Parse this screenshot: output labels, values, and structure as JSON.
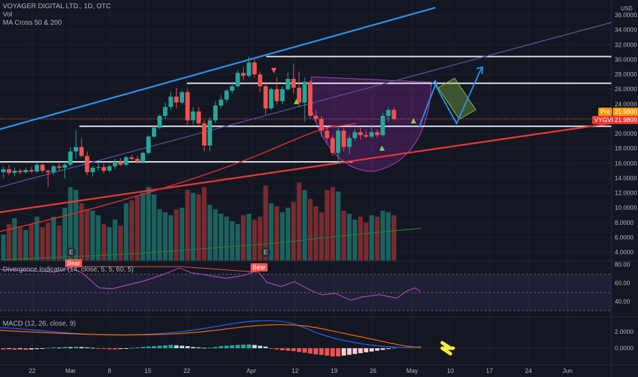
{
  "header": {
    "title": "VOYAGER DIGITAL LTD., 1D, OTC",
    "vol_label": "Vol",
    "ma_label": "MA Cross 50 & 200"
  },
  "price_axis": {
    "currency": "USD",
    "labels": [
      "36.0000",
      "34.0000",
      "32.0000",
      "30.0000",
      "28.0000",
      "26.0000",
      "24.0000",
      "22.0000",
      "20.0000",
      "18.0000",
      "16.0000",
      "14.0000",
      "12.0000",
      "10.0000",
      "8.0000",
      "6.0000",
      "4.0000"
    ]
  },
  "price_tags": {
    "pre_label": "Pre",
    "pre_value": "21.9800",
    "symbol": "VYGVF",
    "symbol_value": "21.9800"
  },
  "divergence": {
    "label": "Divergence Indicator (14, close, 5, 5, 60, 5)",
    "axis_labels": [
      "80.00",
      "60.00",
      "40.00"
    ],
    "bear_label_1": "Bear",
    "bear_label_2": "Bear"
  },
  "macd": {
    "label": "MACD (12, 26, close, 9)",
    "axis_labels": [
      "2.0000",
      "0.0000"
    ]
  },
  "events": {
    "e1": "E",
    "e2": "E"
  },
  "time_axis": {
    "labels": [
      "22",
      "Mar",
      "8",
      "15",
      "22",
      "Apr",
      "12",
      "19",
      "26",
      "May",
      "10",
      "17",
      "24",
      "Jun"
    ]
  },
  "colors": {
    "background": "#131722",
    "up": "#26a69a",
    "down": "#ef5350",
    "trend_blue": "#2e8fe8",
    "trend_red": "#e53935",
    "ma_red": "#d32f2f",
    "cup": "#9c27b0",
    "target_box": "#8bc34a",
    "arrow_yellow": "#ffeb3b"
  },
  "chart_data": {
    "type": "candlestick",
    "symbol": "VYGVF",
    "ylim": [
      3,
      37
    ],
    "candles": [
      {
        "o": 14.8,
        "h": 15.6,
        "l": 14.0,
        "c": 15.2
      },
      {
        "o": 15.2,
        "h": 15.8,
        "l": 14.4,
        "c": 14.7
      },
      {
        "o": 14.7,
        "h": 15.4,
        "l": 14.3,
        "c": 15.0
      },
      {
        "o": 15.0,
        "h": 15.3,
        "l": 14.5,
        "c": 14.8
      },
      {
        "o": 14.8,
        "h": 15.4,
        "l": 14.6,
        "c": 15.1
      },
      {
        "o": 15.1,
        "h": 15.5,
        "l": 14.7,
        "c": 14.9
      },
      {
        "o": 14.9,
        "h": 16.2,
        "l": 14.7,
        "c": 15.8
      },
      {
        "o": 15.8,
        "h": 16.0,
        "l": 14.7,
        "c": 15.0
      },
      {
        "o": 15.0,
        "h": 15.2,
        "l": 12.8,
        "c": 14.8
      },
      {
        "o": 14.8,
        "h": 15.8,
        "l": 14.4,
        "c": 15.6
      },
      {
        "o": 15.6,
        "h": 16.0,
        "l": 15.0,
        "c": 15.4
      },
      {
        "o": 15.4,
        "h": 16.2,
        "l": 14.0,
        "c": 15.8
      },
      {
        "o": 15.8,
        "h": 18.2,
        "l": 15.6,
        "c": 17.6
      },
      {
        "o": 17.6,
        "h": 20.5,
        "l": 16.6,
        "c": 18.2
      },
      {
        "o": 18.2,
        "h": 19.4,
        "l": 16.8,
        "c": 17.0
      },
      {
        "o": 17.0,
        "h": 17.6,
        "l": 14.4,
        "c": 14.8
      },
      {
        "o": 14.8,
        "h": 15.6,
        "l": 14.2,
        "c": 15.4
      },
      {
        "o": 15.4,
        "h": 16.2,
        "l": 15.0,
        "c": 15.5
      },
      {
        "o": 15.5,
        "h": 16.0,
        "l": 14.6,
        "c": 15.0
      },
      {
        "o": 15.0,
        "h": 15.8,
        "l": 14.8,
        "c": 15.6
      },
      {
        "o": 15.6,
        "h": 16.6,
        "l": 15.2,
        "c": 16.2
      },
      {
        "o": 16.2,
        "h": 16.7,
        "l": 15.6,
        "c": 15.8
      },
      {
        "o": 15.8,
        "h": 17.0,
        "l": 15.6,
        "c": 16.8
      },
      {
        "o": 16.8,
        "h": 17.2,
        "l": 16.4,
        "c": 16.6
      },
      {
        "o": 16.6,
        "h": 17.0,
        "l": 16.0,
        "c": 16.2
      },
      {
        "o": 16.2,
        "h": 17.6,
        "l": 16.0,
        "c": 17.4
      },
      {
        "o": 17.4,
        "h": 19.8,
        "l": 17.2,
        "c": 19.6
      },
      {
        "o": 19.6,
        "h": 21.0,
        "l": 19.4,
        "c": 20.8
      },
      {
        "o": 20.8,
        "h": 22.6,
        "l": 20.6,
        "c": 22.4
      },
      {
        "o": 22.4,
        "h": 24.2,
        "l": 22.0,
        "c": 23.6
      },
      {
        "o": 23.6,
        "h": 25.6,
        "l": 23.2,
        "c": 25.0
      },
      {
        "o": 25.0,
        "h": 26.2,
        "l": 23.4,
        "c": 24.2
      },
      {
        "o": 24.2,
        "h": 25.8,
        "l": 24.0,
        "c": 25.6
      },
      {
        "o": 25.6,
        "h": 26.0,
        "l": 21.2,
        "c": 21.8
      },
      {
        "o": 21.8,
        "h": 23.6,
        "l": 21.2,
        "c": 23.0
      },
      {
        "o": 23.0,
        "h": 23.6,
        "l": 21.0,
        "c": 21.4
      },
      {
        "o": 21.4,
        "h": 21.8,
        "l": 17.6,
        "c": 18.4
      },
      {
        "o": 18.4,
        "h": 22.2,
        "l": 17.6,
        "c": 21.8
      },
      {
        "o": 21.8,
        "h": 24.4,
        "l": 21.4,
        "c": 23.8
      },
      {
        "o": 23.8,
        "h": 25.2,
        "l": 23.4,
        "c": 24.6
      },
      {
        "o": 24.6,
        "h": 26.0,
        "l": 24.2,
        "c": 25.8
      },
      {
        "o": 25.8,
        "h": 27.0,
        "l": 25.4,
        "c": 26.4
      },
      {
        "o": 26.4,
        "h": 28.6,
        "l": 26.2,
        "c": 28.2
      },
      {
        "o": 28.2,
        "h": 29.0,
        "l": 27.2,
        "c": 27.8
      },
      {
        "o": 27.8,
        "h": 30.4,
        "l": 27.6,
        "c": 29.6
      },
      {
        "o": 29.6,
        "h": 30.0,
        "l": 27.6,
        "c": 28.0
      },
      {
        "o": 28.0,
        "h": 28.4,
        "l": 25.6,
        "c": 26.4
      },
      {
        "o": 26.4,
        "h": 27.0,
        "l": 22.6,
        "c": 23.4
      },
      {
        "o": 23.4,
        "h": 26.2,
        "l": 23.2,
        "c": 26.0
      },
      {
        "o": 26.0,
        "h": 27.6,
        "l": 24.0,
        "c": 24.4
      },
      {
        "o": 24.4,
        "h": 26.4,
        "l": 24.0,
        "c": 26.0
      },
      {
        "o": 26.0,
        "h": 28.4,
        "l": 25.8,
        "c": 27.4
      },
      {
        "o": 27.4,
        "h": 29.4,
        "l": 25.4,
        "c": 26.2
      },
      {
        "o": 26.2,
        "h": 28.4,
        "l": 23.6,
        "c": 24.2
      },
      {
        "o": 24.2,
        "h": 27.6,
        "l": 21.6,
        "c": 27.0
      },
      {
        "o": 27.0,
        "h": 27.2,
        "l": 22.0,
        "c": 22.4
      },
      {
        "o": 22.4,
        "h": 23.2,
        "l": 21.6,
        "c": 22.0
      },
      {
        "o": 22.0,
        "h": 22.4,
        "l": 19.6,
        "c": 20.4
      },
      {
        "o": 20.4,
        "h": 20.8,
        "l": 18.8,
        "c": 19.4
      },
      {
        "o": 19.4,
        "h": 19.8,
        "l": 17.0,
        "c": 17.4
      },
      {
        "o": 17.4,
        "h": 20.8,
        "l": 16.0,
        "c": 20.4
      },
      {
        "o": 20.4,
        "h": 20.8,
        "l": 17.6,
        "c": 18.2
      },
      {
        "o": 18.2,
        "h": 19.8,
        "l": 17.2,
        "c": 19.4
      },
      {
        "o": 19.4,
        "h": 20.6,
        "l": 19.0,
        "c": 20.2
      },
      {
        "o": 20.2,
        "h": 20.8,
        "l": 19.2,
        "c": 19.8
      },
      {
        "o": 19.8,
        "h": 20.4,
        "l": 19.4,
        "c": 19.6
      },
      {
        "o": 19.6,
        "h": 21.2,
        "l": 19.4,
        "c": 20.2
      },
      {
        "o": 20.2,
        "h": 20.6,
        "l": 19.4,
        "c": 19.8
      },
      {
        "o": 19.8,
        "h": 22.8,
        "l": 19.6,
        "c": 22.4
      },
      {
        "o": 22.4,
        "h": 23.6,
        "l": 21.6,
        "c": 23.2
      },
      {
        "o": 23.2,
        "h": 23.6,
        "l": 21.8,
        "c": 21.98
      }
    ],
    "volume": [
      3.2,
      4.6,
      5.4,
      4.2,
      3.8,
      4.6,
      5.6,
      4.2,
      4.8,
      5.6,
      4.4,
      6.8,
      9.6,
      9.2,
      7.4,
      6.6,
      6.4,
      5.8,
      4.6,
      4.2,
      5.2,
      4.4,
      7.4,
      7.8,
      8.4,
      8.8,
      9.6,
      8.6,
      6.6,
      6.2,
      5.8,
      6.6,
      6.8,
      9.2,
      8.8,
      8.6,
      9.6,
      7.2,
      6.6,
      6.0,
      5.6,
      5.0,
      4.6,
      5.8,
      6.0,
      5.2,
      5.6,
      9.8,
      7.4,
      7.0,
      6.2,
      6.8,
      7.6,
      10.2,
      9.2,
      8.0,
      7.0,
      6.2,
      9.2,
      9.6,
      9.0,
      6.4,
      6.0,
      5.2,
      5.6,
      4.8,
      5.8,
      5.6,
      6.4,
      6.2,
      5.8
    ]
  }
}
